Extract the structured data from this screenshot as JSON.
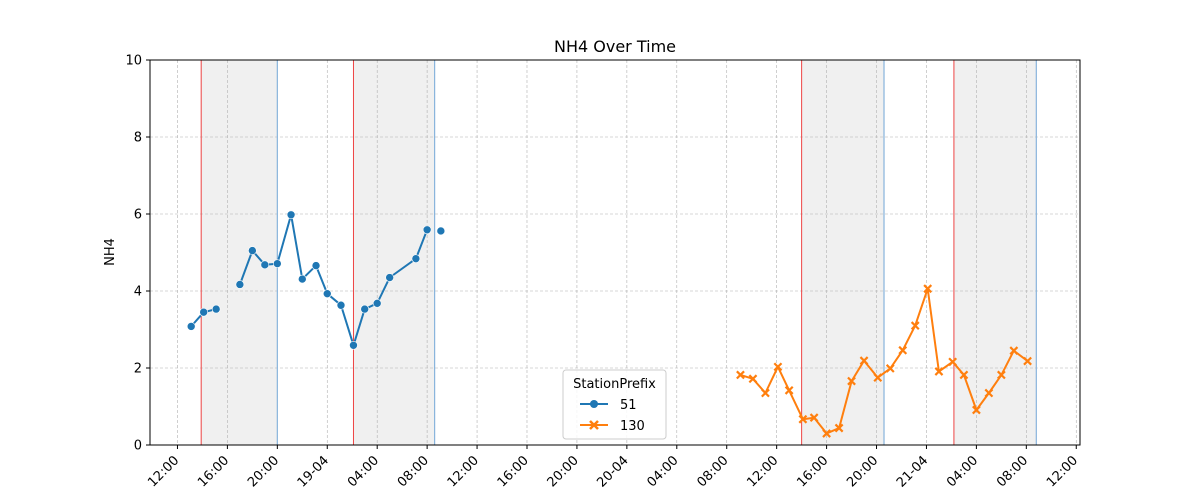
{
  "chart_data": {
    "type": "line",
    "title": "NH4 Over Time",
    "xlabel": "",
    "ylabel": "NH4",
    "ylim": [
      0,
      10
    ],
    "yticks": [
      0,
      2,
      4,
      6,
      8,
      10
    ],
    "xlim_hours": [
      -2.2,
      72.3
    ],
    "xticks": [
      {
        "h": 0,
        "label": "12:00"
      },
      {
        "h": 4,
        "label": "16:00"
      },
      {
        "h": 8,
        "label": "20:00"
      },
      {
        "h": 12,
        "label": "19-04"
      },
      {
        "h": 16,
        "label": "04:00"
      },
      {
        "h": 20,
        "label": "08:00"
      },
      {
        "h": 24,
        "label": "12:00"
      },
      {
        "h": 28,
        "label": "16:00"
      },
      {
        "h": 32,
        "label": "20:00"
      },
      {
        "h": 36,
        "label": "20-04"
      },
      {
        "h": 40,
        "label": "04:00"
      },
      {
        "h": 44,
        "label": "08:00"
      },
      {
        "h": 48,
        "label": "12:00"
      },
      {
        "h": 52,
        "label": "16:00"
      },
      {
        "h": 56,
        "label": "20:00"
      },
      {
        "h": 60,
        "label": "21-04"
      },
      {
        "h": 64,
        "label": "04:00"
      },
      {
        "h": 68,
        "label": "08:00"
      },
      {
        "h": 72,
        "label": "12:00"
      }
    ],
    "shaded_periods": [
      {
        "start": 1.9,
        "end": 8.0
      },
      {
        "start": 14.1,
        "end": 20.6
      },
      {
        "start": 50.0,
        "end": 56.6
      },
      {
        "start": 62.2,
        "end": 68.8
      }
    ],
    "grid": true,
    "legend": {
      "title": "StationPrefix",
      "position": "lower-center"
    },
    "series": [
      {
        "name": "51",
        "color": "#1f77b4",
        "marker": "circle",
        "segments": [
          [
            [
              1.1,
              3.08
            ],
            [
              2.1,
              3.45
            ],
            [
              3.1,
              3.53
            ]
          ],
          [
            [
              5.0,
              4.17
            ],
            [
              6.0,
              5.05
            ],
            [
              7.0,
              4.68
            ],
            [
              8.0,
              4.71
            ],
            [
              9.1,
              5.98
            ],
            [
              10.0,
              4.31
            ],
            [
              11.1,
              4.66
            ],
            [
              12.0,
              3.93
            ],
            [
              13.1,
              3.63
            ],
            [
              14.1,
              2.59
            ],
            [
              15.0,
              3.53
            ],
            [
              16.0,
              3.68
            ],
            [
              17.0,
              4.35
            ],
            [
              19.1,
              4.84
            ],
            [
              20.0,
              5.59
            ]
          ],
          [
            [
              21.1,
              5.56
            ]
          ]
        ]
      },
      {
        "name": "130",
        "color": "#ff7f0e",
        "marker": "x",
        "segments": [
          [
            [
              45.1,
              1.82
            ],
            [
              46.1,
              1.72
            ],
            [
              47.1,
              1.35
            ],
            [
              48.1,
              2.03
            ],
            [
              49.0,
              1.42
            ],
            [
              50.1,
              0.67
            ],
            [
              51.0,
              0.71
            ],
            [
              52.0,
              0.3
            ],
            [
              53.0,
              0.44
            ],
            [
              54.0,
              1.66
            ],
            [
              55.0,
              2.19
            ],
            [
              56.1,
              1.75
            ],
            [
              57.1,
              1.99
            ],
            [
              58.1,
              2.46
            ],
            [
              59.1,
              3.1
            ],
            [
              60.1,
              4.06
            ],
            [
              61.0,
              1.91
            ],
            [
              62.1,
              2.16
            ],
            [
              63.0,
              1.82
            ],
            [
              64.0,
              0.91
            ],
            [
              65.0,
              1.35
            ],
            [
              66.0,
              1.82
            ],
            [
              67.0,
              2.45
            ],
            [
              68.1,
              2.18
            ]
          ]
        ]
      }
    ]
  }
}
